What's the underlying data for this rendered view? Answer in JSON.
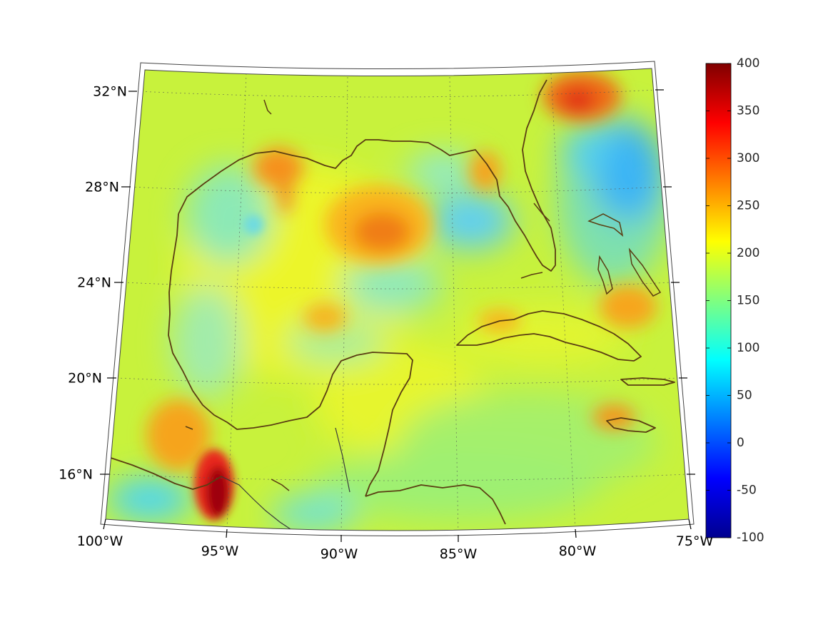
{
  "map": {
    "lat_labels": [
      "32°N",
      "28°N",
      "24°N",
      "20°N",
      "16°N"
    ],
    "lon_labels": [
      "100°W",
      "95°W",
      "90°W",
      "85°W",
      "80°W",
      "75°W"
    ]
  },
  "colorbar": {
    "colormap": "jet",
    "min": -100,
    "max": 400,
    "tick_labels": [
      "400",
      "350",
      "300",
      "250",
      "200",
      "150",
      "100",
      "50",
      "0",
      "-50",
      "-100"
    ],
    "colors": [
      "#00008f",
      "#0000ff",
      "#00ffff",
      "#ffff00",
      "#ff0000",
      "#800000"
    ]
  }
}
